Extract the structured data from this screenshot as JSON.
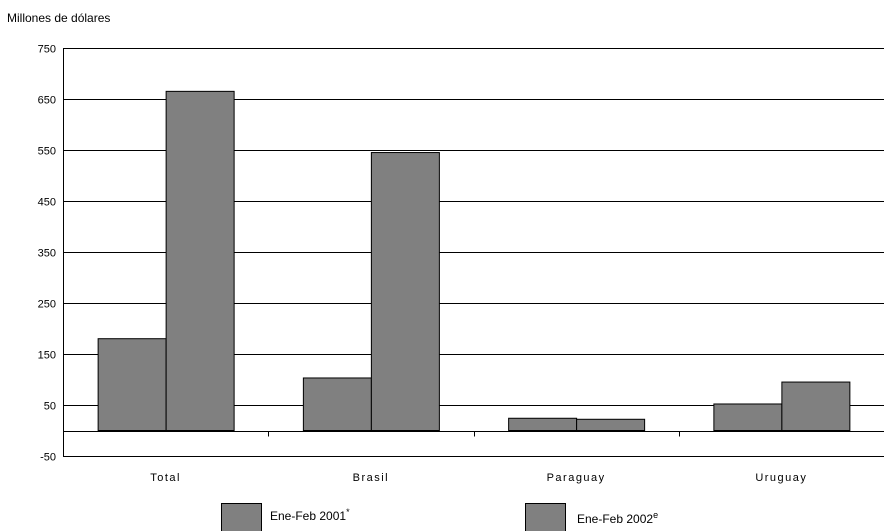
{
  "chart_data": {
    "type": "bar",
    "title": "",
    "ylabel": "Millones de dólares",
    "xlabel": "",
    "ylim": [
      -50,
      750
    ],
    "yticks": [
      750,
      650,
      550,
      450,
      350,
      250,
      150,
      50,
      -50
    ],
    "yticks_text": [
      "750",
      "650",
      "550",
      "450",
      "350",
      "250",
      "150",
      "50",
      "-50"
    ],
    "grid": true,
    "categories": [
      "Total",
      "Brasil",
      "Paraguay",
      "Uruguay"
    ],
    "series": [
      {
        "name": "Ene-Feb 2001",
        "name_sup": "*",
        "color": "#808080",
        "values": [
          180,
          103,
          24,
          52
        ]
      },
      {
        "name": "Ene-Feb 2002",
        "name_sup": "e",
        "color": "#808080",
        "values": [
          665,
          545,
          22,
          95
        ]
      }
    ],
    "legend": "bottom"
  }
}
